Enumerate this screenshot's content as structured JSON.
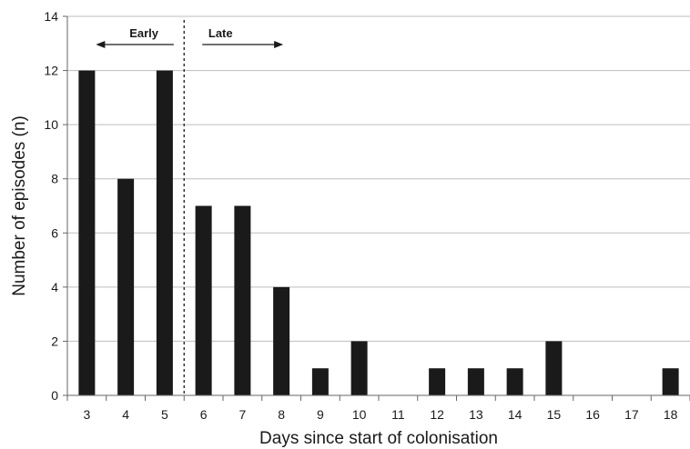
{
  "chart_data": {
    "type": "bar",
    "categories": [
      "3",
      "4",
      "5",
      "6",
      "7",
      "8",
      "9",
      "10",
      "11",
      "12",
      "13",
      "14",
      "15",
      "16",
      "17",
      "18"
    ],
    "values": [
      12,
      8,
      12,
      7,
      7,
      4,
      1,
      2,
      0,
      1,
      1,
      1,
      2,
      0,
      0,
      1
    ],
    "xlabel": "Days since start of colonisation",
    "ylabel": "Number of episodes (n)",
    "ylim": [
      0,
      14
    ],
    "yticks": [
      0,
      2,
      4,
      6,
      8,
      10,
      12,
      14
    ],
    "grid": true,
    "bar_color": "#1a1a1a",
    "grid_color": "#bdbdbd",
    "annotations": {
      "early_label": "Early",
      "late_label": "Late",
      "divider": "dashed vertical line between day 5 and day 6"
    }
  }
}
